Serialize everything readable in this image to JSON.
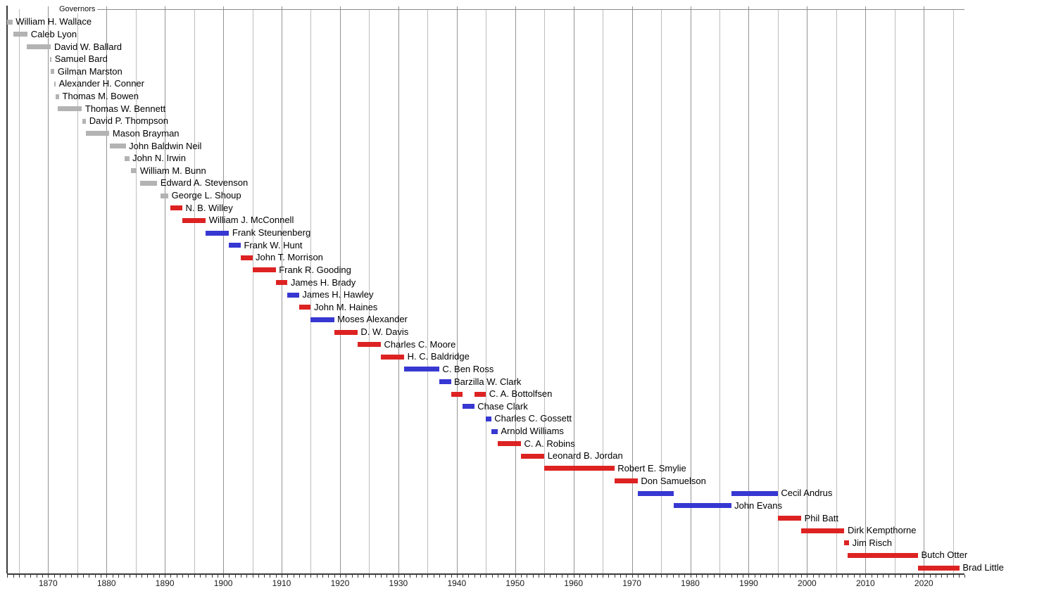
{
  "chart_data": {
    "type": "timeline",
    "title": "Governors",
    "x_axis": {
      "start": 1863,
      "end": 2027,
      "tick_labels": [
        "1870",
        "1880",
        "1890",
        "1900",
        "1910",
        "1920",
        "1930",
        "1940",
        "1950",
        "1960",
        "1970",
        "1980",
        "1990",
        "2000",
        "2010",
        "2020"
      ],
      "minor_tick_interval_years": 1,
      "gridline_interval_years": 5,
      "grid": true
    },
    "party_colors": {
      "territorial": "#b3b3b3",
      "republican": "#dd2222",
      "democratic": "#3737d2"
    },
    "governors": [
      {
        "name": "William H. Wallace",
        "party": "territorial",
        "terms": [
          [
            1863.0,
            1863.9
          ]
        ]
      },
      {
        "name": "Caleb Lyon",
        "party": "territorial",
        "terms": [
          [
            1864.1,
            1866.5
          ]
        ]
      },
      {
        "name": "David W. Ballard",
        "party": "territorial",
        "terms": [
          [
            1866.3,
            1870.5
          ]
        ]
      },
      {
        "name": "Samuel Bard",
        "party": "territorial",
        "terms": [
          [
            1870.3,
            1870.6
          ]
        ]
      },
      {
        "name": "Gilman Marston",
        "party": "territorial",
        "terms": [
          [
            1870.5,
            1871.1
          ]
        ]
      },
      {
        "name": "Alexander H. Conner",
        "party": "territorial",
        "terms": [
          [
            1871.0,
            1871.3
          ]
        ]
      },
      {
        "name": "Thomas M. Bowen",
        "party": "territorial",
        "terms": [
          [
            1871.3,
            1871.9
          ]
        ]
      },
      {
        "name": "Thomas W. Bennett",
        "party": "territorial",
        "terms": [
          [
            1871.7,
            1875.8
          ]
        ]
      },
      {
        "name": "David P. Thompson",
        "party": "territorial",
        "terms": [
          [
            1875.9,
            1876.5
          ]
        ]
      },
      {
        "name": "Mason Brayman",
        "party": "territorial",
        "terms": [
          [
            1876.5,
            1880.5
          ]
        ]
      },
      {
        "name": "John Baldwin Neil",
        "party": "territorial",
        "terms": [
          [
            1880.6,
            1883.3
          ]
        ]
      },
      {
        "name": "John N. Irwin",
        "party": "territorial",
        "terms": [
          [
            1883.1,
            1883.9
          ]
        ]
      },
      {
        "name": "William M. Bunn",
        "party": "territorial",
        "terms": [
          [
            1884.2,
            1885.2
          ]
        ]
      },
      {
        "name": "Edward A. Stevenson",
        "party": "territorial",
        "terms": [
          [
            1885.7,
            1888.7
          ]
        ]
      },
      {
        "name": "George L. Shoup",
        "party": "territorial",
        "terms": [
          [
            1889.3,
            1890.6
          ]
        ]
      },
      {
        "name": "N. B. Willey",
        "party": "republican",
        "terms": [
          [
            1890.9,
            1893.0
          ]
        ]
      },
      {
        "name": "William J. McConnell",
        "party": "republican",
        "terms": [
          [
            1893.0,
            1897.0
          ]
        ]
      },
      {
        "name": "Frank Steunenberg",
        "party": "democratic",
        "terms": [
          [
            1897.0,
            1901.0
          ]
        ]
      },
      {
        "name": "Frank W. Hunt",
        "party": "democratic",
        "terms": [
          [
            1901.0,
            1903.0
          ]
        ]
      },
      {
        "name": "John T. Morrison",
        "party": "republican",
        "terms": [
          [
            1903.0,
            1905.0
          ]
        ]
      },
      {
        "name": "Frank R. Gooding",
        "party": "republican",
        "terms": [
          [
            1905.0,
            1909.0
          ]
        ]
      },
      {
        "name": "James H. Brady",
        "party": "republican",
        "terms": [
          [
            1909.0,
            1911.0
          ]
        ]
      },
      {
        "name": "James H. Hawley",
        "party": "democratic",
        "terms": [
          [
            1911.0,
            1913.0
          ]
        ]
      },
      {
        "name": "John M. Haines",
        "party": "republican",
        "terms": [
          [
            1913.0,
            1915.0
          ]
        ]
      },
      {
        "name": "Moses Alexander",
        "party": "democratic",
        "terms": [
          [
            1915.0,
            1919.0
          ]
        ]
      },
      {
        "name": "D. W. Davis",
        "party": "republican",
        "terms": [
          [
            1919.0,
            1923.0
          ]
        ]
      },
      {
        "name": "Charles C. Moore",
        "party": "republican",
        "terms": [
          [
            1923.0,
            1927.0
          ]
        ]
      },
      {
        "name": "H. C. Baldridge",
        "party": "republican",
        "terms": [
          [
            1927.0,
            1931.0
          ]
        ]
      },
      {
        "name": "C. Ben Ross",
        "party": "democratic",
        "terms": [
          [
            1931.0,
            1937.0
          ]
        ]
      },
      {
        "name": "Barzilla W. Clark",
        "party": "democratic",
        "terms": [
          [
            1937.0,
            1939.0
          ]
        ]
      },
      {
        "name": "C. A. Bottolfsen",
        "party": "republican",
        "terms": [
          [
            1939.0,
            1941.0
          ],
          [
            1943.0,
            1945.0
          ]
        ]
      },
      {
        "name": "Chase Clark",
        "party": "democratic",
        "terms": [
          [
            1941.0,
            1943.0
          ]
        ]
      },
      {
        "name": "Charles C. Gossett",
        "party": "democratic",
        "terms": [
          [
            1945.0,
            1945.9
          ]
        ]
      },
      {
        "name": "Arnold Williams",
        "party": "democratic",
        "terms": [
          [
            1945.9,
            1947.0
          ]
        ]
      },
      {
        "name": "C. A. Robins",
        "party": "republican",
        "terms": [
          [
            1947.0,
            1951.0
          ]
        ]
      },
      {
        "name": "Leonard B. Jordan",
        "party": "republican",
        "terms": [
          [
            1951.0,
            1955.0
          ]
        ]
      },
      {
        "name": "Robert E. Smylie",
        "party": "republican",
        "terms": [
          [
            1955.0,
            1967.0
          ]
        ]
      },
      {
        "name": "Don Samuelson",
        "party": "republican",
        "terms": [
          [
            1967.0,
            1971.0
          ]
        ]
      },
      {
        "name": "Cecil Andrus",
        "party": "democratic",
        "terms": [
          [
            1971.0,
            1977.2
          ],
          [
            1987.0,
            1995.0
          ]
        ]
      },
      {
        "name": "John Evans",
        "party": "democratic",
        "terms": [
          [
            1977.2,
            1987.0
          ]
        ]
      },
      {
        "name": "Phil Batt",
        "party": "republican",
        "terms": [
          [
            1995.0,
            1999.0
          ]
        ]
      },
      {
        "name": "Dirk Kempthorne",
        "party": "republican",
        "terms": [
          [
            1999.0,
            2006.4
          ]
        ]
      },
      {
        "name": "Jim Risch",
        "party": "republican",
        "terms": [
          [
            2006.3,
            2007.2
          ]
        ]
      },
      {
        "name": "Butch Otter",
        "party": "republican",
        "terms": [
          [
            2007.0,
            2019.0
          ]
        ]
      },
      {
        "name": "Brad Little",
        "party": "republican",
        "terms": [
          [
            2019.0,
            2026.1
          ]
        ]
      }
    ]
  }
}
